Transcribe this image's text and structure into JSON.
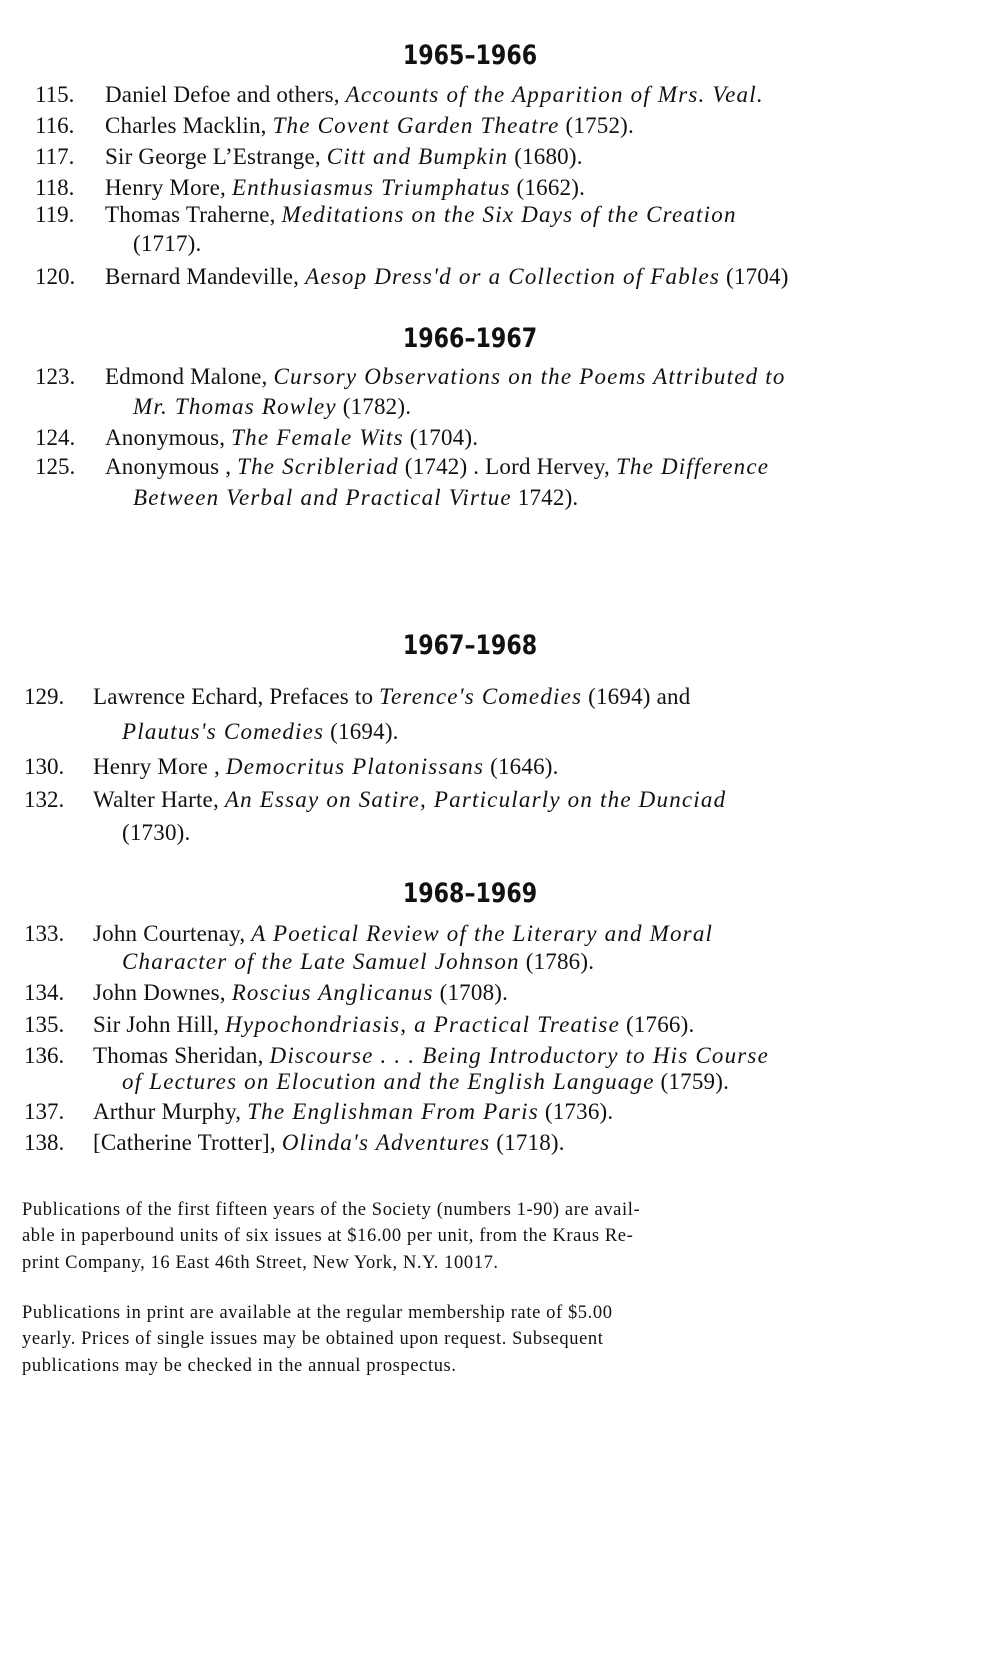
{
  "sections": [
    {
      "heading": "1965–1966",
      "entries": [
        {
          "number": "115.",
          "lines": [
            [
              {
                "t": "Daniel Defoe and others, "
              },
              {
                "t": "Accounts of the Apparition of Mrs. Veal.",
                "i": true
              }
            ]
          ]
        },
        {
          "number": "116.",
          "lines": [
            [
              {
                "t": "Charles Macklin, "
              },
              {
                "t": "The Covent Garden Theatre",
                "i": true
              },
              {
                "t": " (1752)."
              }
            ]
          ]
        },
        {
          "number": "117.",
          "lines": [
            [
              {
                "t": "Sir George L’Estrange, "
              },
              {
                "t": "Citt and Bumpkin",
                "i": true
              },
              {
                "t": " (1680)."
              }
            ]
          ]
        },
        {
          "number": "118.",
          "lines": [
            [
              {
                "t": "Henry More, "
              },
              {
                "t": "Enthusiasmus Triumphatus",
                "i": true
              },
              {
                "t": " (1662)."
              }
            ]
          ]
        },
        {
          "number": "119.",
          "lines": [
            [
              {
                "t": "Thomas Traherne, "
              },
              {
                "t": "Meditations on the Six Days of the Creation",
                "i": true
              }
            ],
            [
              {
                "t": "(1717)."
              }
            ]
          ]
        },
        {
          "number": "120.",
          "lines": [
            [
              {
                "t": "Bernard Mandeville, "
              },
              {
                "t": "Aesop Dress'd or a Collection of Fables",
                "i": true
              },
              {
                "t": " (1704)"
              }
            ]
          ]
        }
      ]
    },
    {
      "heading": "1966–1967",
      "entries": [
        {
          "number": "123.",
          "lines": [
            [
              {
                "t": "Edmond Malone, "
              },
              {
                "t": "Cursory Observations on the Poems Attributed to",
                "i": true
              }
            ],
            [
              {
                "t": "Mr. Thomas Rowley",
                "i": true
              },
              {
                "t": " (1782)."
              }
            ]
          ]
        },
        {
          "number": "124.",
          "lines": [
            [
              {
                "t": "Anonymous, "
              },
              {
                "t": "The Female Wits",
                "i": true
              },
              {
                "t": " (1704)."
              }
            ]
          ]
        },
        {
          "number": "125.",
          "lines": [
            [
              {
                "t": "Anonymous , "
              },
              {
                "t": "The Scribleriad",
                "i": true
              },
              {
                "t": " (1742) . Lord Hervey, "
              },
              {
                "t": "The Difference",
                "i": true
              }
            ],
            [
              {
                "t": "Between Verbal and Practical Virtue",
                "i": true
              },
              {
                "t": " 1742)."
              }
            ]
          ]
        }
      ]
    },
    {
      "heading": "1967–1968",
      "entries": [
        {
          "number": "129.",
          "lines": [
            [
              {
                "t": "Lawrence Echard, Prefaces to "
              },
              {
                "t": "Terence's Comedies",
                "i": true
              },
              {
                "t": " (1694) and"
              }
            ],
            [
              {
                "t": "Plautus's Comedies",
                "i": true
              },
              {
                "t": " (1694)."
              }
            ]
          ]
        },
        {
          "number": "130.",
          "lines": [
            [
              {
                "t": "Henry More , "
              },
              {
                "t": "Democritus Platonissans",
                "i": true
              },
              {
                "t": " (1646)."
              }
            ]
          ]
        },
        {
          "number": "132.",
          "lines": [
            [
              {
                "t": "Walter Harte, "
              },
              {
                "t": "An Essay on Satire, Particularly on the Dunciad",
                "i": true
              }
            ],
            [
              {
                "t": "(1730)."
              }
            ]
          ]
        }
      ]
    },
    {
      "heading": "1968–1969",
      "entries": [
        {
          "number": "133.",
          "lines": [
            [
              {
                "t": "John Courtenay, "
              },
              {
                "t": "A Poetical Review of the Literary and Moral",
                "i": true
              }
            ],
            [
              {
                "t": "Character of the Late Samuel Johnson",
                "i": true
              },
              {
                "t": " (1786)."
              }
            ]
          ]
        },
        {
          "number": "134.",
          "lines": [
            [
              {
                "t": "John Downes, "
              },
              {
                "t": "Roscius Anglicanus",
                "i": true
              },
              {
                "t": " (1708)."
              }
            ]
          ]
        },
        {
          "number": "135.",
          "lines": [
            [
              {
                "t": "Sir John Hill, "
              },
              {
                "t": "Hypochondriasis, a Practical Treatise",
                "i": true
              },
              {
                "t": " (1766)."
              }
            ]
          ]
        },
        {
          "number": "136.",
          "lines": [
            [
              {
                "t": "Thomas Sheridan, "
              },
              {
                "t": "Discourse . . . Being Introductory to His Course",
                "i": true
              }
            ],
            [
              {
                "t": "of Lectures on Elocution and the English Language",
                "i": true
              },
              {
                "t": " (1759)."
              }
            ]
          ]
        },
        {
          "number": "137.",
          "lines": [
            [
              {
                "t": "Arthur Murphy, "
              },
              {
                "t": "The Englishman From Paris",
                "i": true
              },
              {
                "t": " (1736)."
              }
            ]
          ]
        },
        {
          "number": "138.",
          "lines": [
            [
              {
                "t": "[Catherine Trotter], "
              },
              {
                "t": "Olinda's Adventures",
                "i": true
              },
              {
                "t": " (1718)."
              }
            ]
          ]
        }
      ]
    }
  ],
  "footnotes": [
    [
      "Publications of the first fifteen years of the Society (numbers 1-90) are avail-",
      "able in paperbound units of six issues at $16.00 per unit, from the Kraus Re-",
      "print Company, 16 East 46th Street, New York, N.Y. 10017."
    ],
    [
      "Publications in print are available at the regular membership rate of $5.00",
      "yearly.  Prices of single issues may be obtained upon request.  Subsequent",
      "publications may be checked in the annual prospectus."
    ]
  ]
}
